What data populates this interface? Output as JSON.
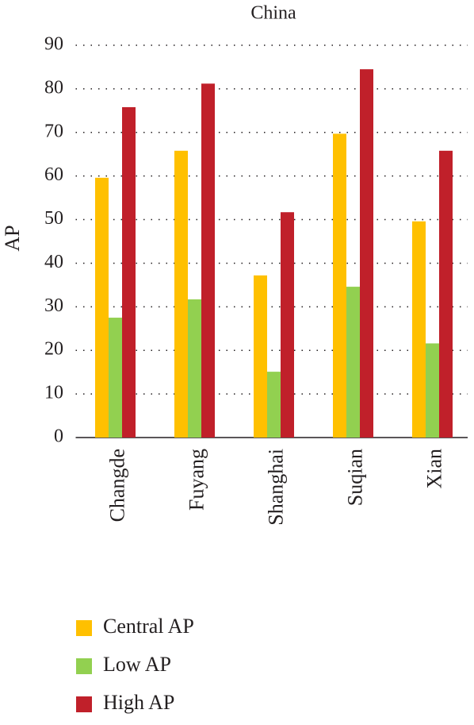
{
  "chart_data": {
    "type": "bar",
    "title": "China",
    "y_label": "AP",
    "categories": [
      "Changde",
      "Fuyang",
      "Shanghai",
      "Suqian",
      "Xian"
    ],
    "series": [
      {
        "name": "Central AP",
        "color": "#ffc000",
        "values": [
          59.6,
          65.8,
          37.2,
          69.7,
          49.6
        ]
      },
      {
        "name": "Low AP",
        "color": "#92d050",
        "values": [
          27.5,
          31.7,
          15.1,
          34.6,
          21.6
        ]
      },
      {
        "name": "High AP",
        "color": "#c0202a",
        "values": [
          75.8,
          81.2,
          51.7,
          84.5,
          65.8
        ]
      }
    ],
    "ylim": [
      0,
      90
    ],
    "yticks": [
      0,
      10,
      20,
      30,
      40,
      50,
      60,
      70,
      80,
      90
    ],
    "grid": true
  }
}
